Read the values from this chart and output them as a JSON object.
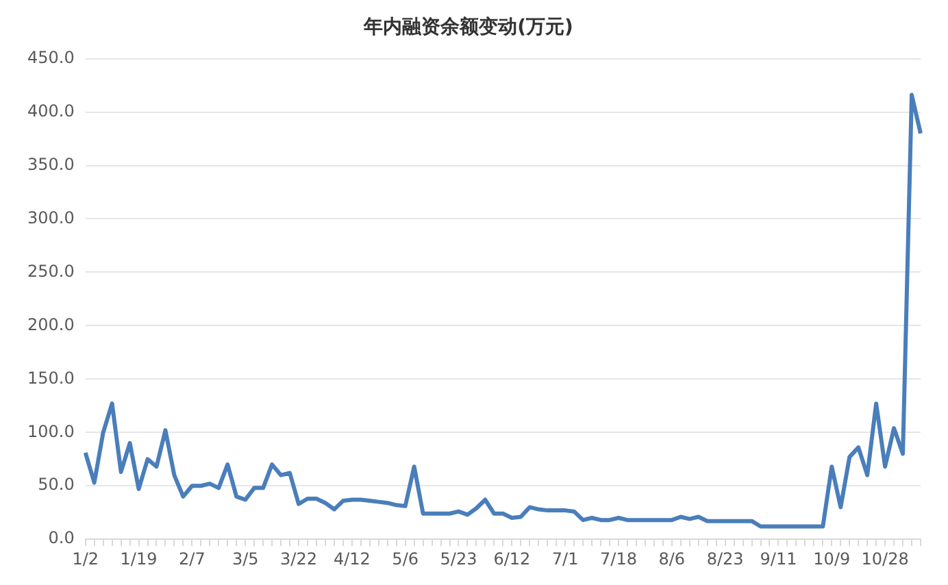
{
  "chart_data": {
    "type": "line",
    "title": "年内融资余额变动(万元)",
    "categories": [
      "1/2",
      null,
      null,
      null,
      null,
      null,
      "1/19",
      null,
      null,
      null,
      null,
      null,
      "2/7",
      null,
      null,
      null,
      null,
      null,
      "3/5",
      null,
      null,
      null,
      null,
      null,
      "3/22",
      null,
      null,
      null,
      null,
      null,
      "4/12",
      null,
      null,
      null,
      null,
      null,
      "5/6",
      null,
      null,
      null,
      null,
      null,
      "5/23",
      null,
      null,
      null,
      null,
      null,
      "6/12",
      null,
      null,
      null,
      null,
      null,
      "7/1",
      null,
      null,
      null,
      null,
      null,
      "7/18",
      null,
      null,
      null,
      null,
      null,
      "8/6",
      null,
      null,
      null,
      null,
      null,
      "8/23",
      null,
      null,
      null,
      null,
      null,
      "9/11",
      null,
      null,
      null,
      null,
      null,
      "10/9",
      null,
      null,
      null,
      null,
      null,
      "10/28",
      null,
      null,
      null,
      null
    ],
    "series": [
      {
        "color": "#4a7ebb",
        "values": [
          81,
          53,
          100,
          127,
          63,
          90,
          47,
          75,
          68,
          102,
          60,
          40,
          50,
          50,
          52,
          48,
          70,
          40,
          37,
          48,
          48,
          70,
          60,
          62,
          33,
          38,
          38,
          34,
          28,
          36,
          37,
          37,
          36,
          35,
          34,
          32,
          31,
          68,
          24,
          24,
          24,
          24,
          26,
          23,
          29,
          37,
          24,
          24,
          20,
          21,
          30,
          28,
          27,
          27,
          27,
          26,
          18,
          20,
          18,
          18,
          20,
          18,
          18,
          18,
          18,
          18,
          18,
          21,
          19,
          21,
          17,
          17,
          17,
          17,
          17,
          17,
          12,
          12,
          12,
          12,
          12,
          12,
          12,
          12,
          68,
          30,
          77,
          86,
          60,
          127,
          68,
          104,
          80,
          416,
          380
        ]
      }
    ],
    "ylim": [
      0,
      450
    ],
    "yticks": [
      {
        "value": 0,
        "label": "0.0"
      },
      {
        "value": 50,
        "label": "50.0"
      },
      {
        "value": 100,
        "label": "100.0"
      },
      {
        "value": 150,
        "label": "150.0"
      },
      {
        "value": 200,
        "label": "200.0"
      },
      {
        "value": 250,
        "label": "250.0"
      },
      {
        "value": 300,
        "label": "300.0"
      },
      {
        "value": 350,
        "label": "350.0"
      },
      {
        "value": 400,
        "label": "400.0"
      },
      {
        "value": 450,
        "label": "450.0"
      }
    ],
    "grid": "y",
    "marker": "none",
    "line_style": "solid",
    "legend": false
  }
}
